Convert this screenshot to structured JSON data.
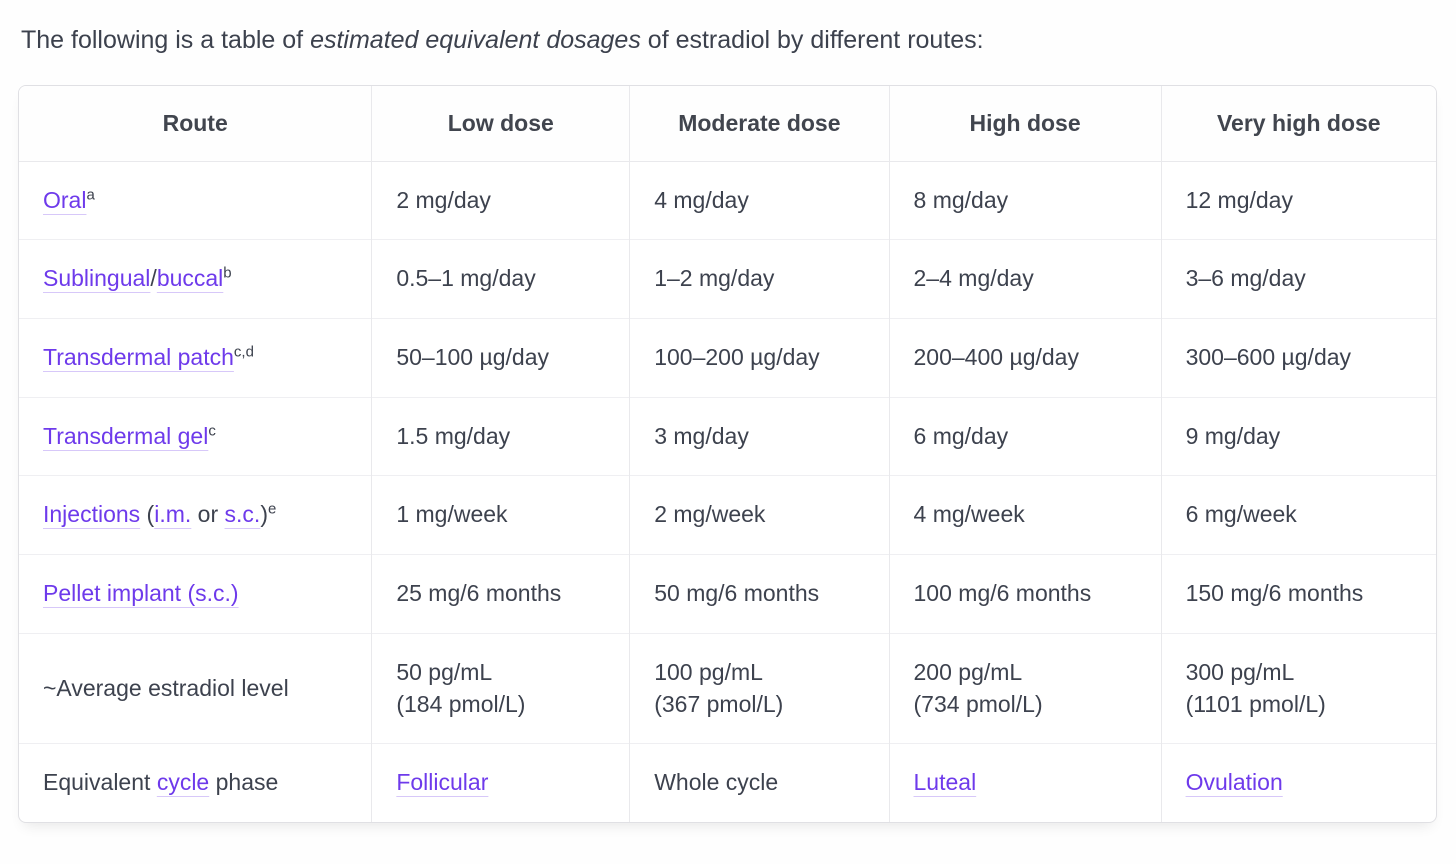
{
  "intro": {
    "prefix": "The following is a table of ",
    "emphasis": "estimated equivalent dosages",
    "suffix": " of estradiol by different routes:"
  },
  "colors": {
    "link": "#6e3aeb",
    "body_text": "#3d424e",
    "header_text": "#41454e",
    "card_border": "#e0e0e4",
    "row_divider": "#efeff2",
    "background": "#fefefe"
  },
  "table": {
    "headers": [
      "Route",
      "Low dose",
      "Moderate dose",
      "High dose",
      "Very high dose"
    ],
    "rows": [
      {
        "cells": [
          [
            {
              "t": "Oral",
              "link": true
            },
            {
              "t": "a",
              "sup": true
            }
          ],
          [
            {
              "t": "2 mg/day"
            }
          ],
          [
            {
              "t": "4 mg/day"
            }
          ],
          [
            {
              "t": "8 mg/day"
            }
          ],
          [
            {
              "t": "12 mg/day"
            }
          ]
        ]
      },
      {
        "cells": [
          [
            {
              "t": "Sublingual",
              "link": true
            },
            {
              "t": "/"
            },
            {
              "t": "buccal",
              "link": true
            },
            {
              "t": "b",
              "sup": true
            }
          ],
          [
            {
              "t": "0.5–1 mg/day"
            }
          ],
          [
            {
              "t": "1–2 mg/day"
            }
          ],
          [
            {
              "t": "2–4 mg/day"
            }
          ],
          [
            {
              "t": "3–6 mg/day"
            }
          ]
        ]
      },
      {
        "cells": [
          [
            {
              "t": "Transdermal patch",
              "link": true
            },
            {
              "t": "c,d",
              "sup": true
            }
          ],
          [
            {
              "t": "50–100 µg/day"
            }
          ],
          [
            {
              "t": "100–200 µg/day"
            }
          ],
          [
            {
              "t": "200–400 µg/day"
            }
          ],
          [
            {
              "t": "300–600 µg/day"
            }
          ]
        ]
      },
      {
        "cells": [
          [
            {
              "t": "Transdermal gel",
              "link": true
            },
            {
              "t": "c",
              "sup": true
            }
          ],
          [
            {
              "t": "1.5 mg/day"
            }
          ],
          [
            {
              "t": "3 mg/day"
            }
          ],
          [
            {
              "t": "6 mg/day"
            }
          ],
          [
            {
              "t": "9 mg/day"
            }
          ]
        ]
      },
      {
        "cells": [
          [
            {
              "t": "Injections",
              "link": true
            },
            {
              "t": " ("
            },
            {
              "t": "i.m.",
              "link": true
            },
            {
              "t": " or "
            },
            {
              "t": "s.c.",
              "link": true
            },
            {
              "t": ")"
            },
            {
              "t": "e",
              "sup": true
            }
          ],
          [
            {
              "t": "1 mg/week"
            }
          ],
          [
            {
              "t": "2 mg/week"
            }
          ],
          [
            {
              "t": "4 mg/week"
            }
          ],
          [
            {
              "t": "6 mg/week"
            }
          ]
        ]
      },
      {
        "cells": [
          [
            {
              "t": "Pellet implant (s.c.)",
              "link": true
            }
          ],
          [
            {
              "t": "25 mg/6 months"
            }
          ],
          [
            {
              "t": "50 mg/6 months"
            }
          ],
          [
            {
              "t": "100 mg/6 months"
            }
          ],
          [
            {
              "t": "150 mg/6 months"
            }
          ]
        ]
      },
      {
        "cells": [
          [
            {
              "t": "~Average estradiol level"
            }
          ],
          [
            {
              "t": "50 pg/mL"
            },
            {
              "br": true
            },
            {
              "t": "(184 pmol/L)"
            }
          ],
          [
            {
              "t": "100 pg/mL"
            },
            {
              "br": true
            },
            {
              "t": "(367 pmol/L)"
            }
          ],
          [
            {
              "t": "200 pg/mL"
            },
            {
              "br": true
            },
            {
              "t": "(734 pmol/L)"
            }
          ],
          [
            {
              "t": "300 pg/mL"
            },
            {
              "br": true
            },
            {
              "t": "(1101 pmol/L)"
            }
          ]
        ]
      },
      {
        "cells": [
          [
            {
              "t": "Equivalent "
            },
            {
              "t": "cycle",
              "link": true
            },
            {
              "t": " phase"
            }
          ],
          [
            {
              "t": "Follicular",
              "link": true
            }
          ],
          [
            {
              "t": "Whole cycle"
            }
          ],
          [
            {
              "t": "Luteal",
              "link": true
            }
          ],
          [
            {
              "t": "Ovulation",
              "link": true
            }
          ]
        ]
      }
    ]
  },
  "chart_data": {
    "type": "table",
    "title": "Estimated equivalent dosages of estradiol by different routes",
    "columns": [
      "Route",
      "Low dose",
      "Moderate dose",
      "High dose",
      "Very high dose"
    ],
    "rows": [
      [
        "Oral^a",
        "2 mg/day",
        "4 mg/day",
        "8 mg/day",
        "12 mg/day"
      ],
      [
        "Sublingual/buccal^b",
        "0.5–1 mg/day",
        "1–2 mg/day",
        "2–4 mg/day",
        "3–6 mg/day"
      ],
      [
        "Transdermal patch^c,d",
        "50–100 µg/day",
        "100–200 µg/day",
        "200–400 µg/day",
        "300–600 µg/day"
      ],
      [
        "Transdermal gel^c",
        "1.5 mg/day",
        "3 mg/day",
        "6 mg/day",
        "9 mg/day"
      ],
      [
        "Injections (i.m. or s.c.)^e",
        "1 mg/week",
        "2 mg/week",
        "4 mg/week",
        "6 mg/week"
      ],
      [
        "Pellet implant (s.c.)",
        "25 mg/6 months",
        "50 mg/6 months",
        "100 mg/6 months",
        "150 mg/6 months"
      ],
      [
        "~Average estradiol level",
        "50 pg/mL (184 pmol/L)",
        "100 pg/mL (367 pmol/L)",
        "200 pg/mL (734 pmol/L)",
        "300 pg/mL (1101 pmol/L)"
      ],
      [
        "Equivalent cycle phase",
        "Follicular",
        "Whole cycle",
        "Luteal",
        "Ovulation"
      ]
    ]
  }
}
